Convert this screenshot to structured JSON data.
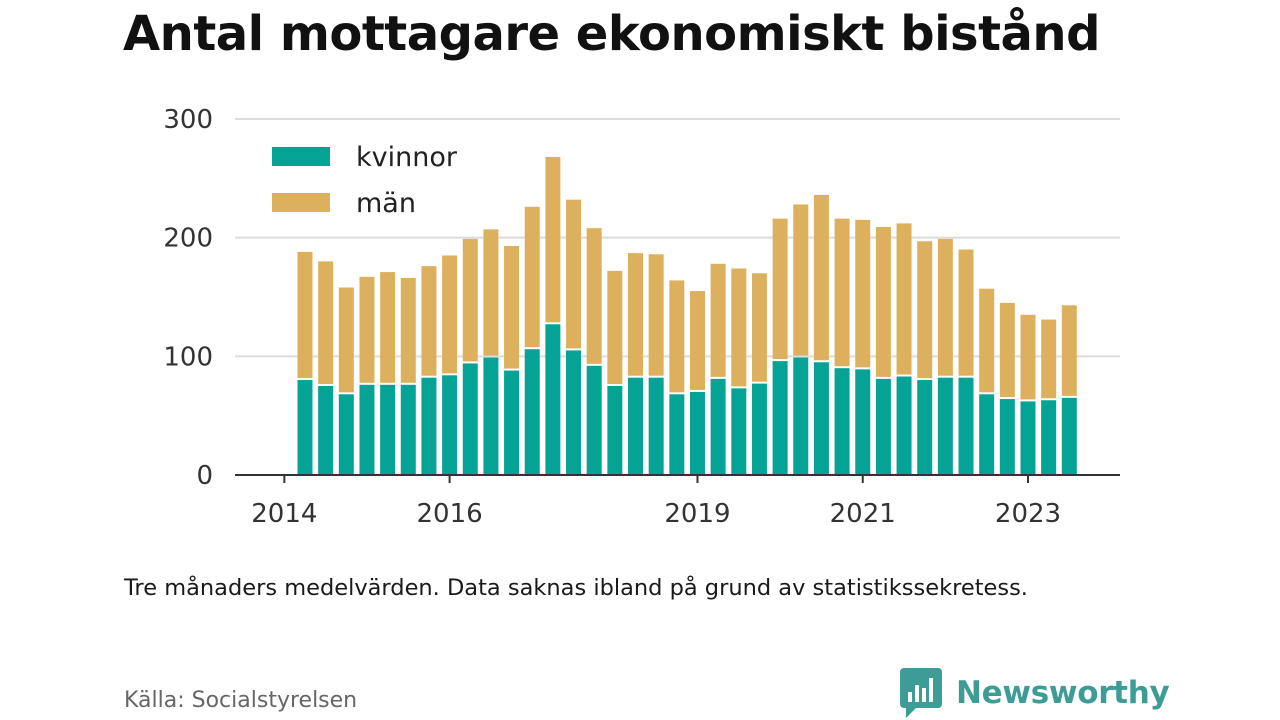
{
  "header": {
    "title": "Antal mottagare ekonomiskt bistånd"
  },
  "footer": {
    "caption": "Tre månaders medelvärden. Data saknas ibland på grund av statistikssekretess.",
    "source": "Källa: Socialstyrelsen",
    "brand": "Newsworthy"
  },
  "colors": {
    "kvinnor": "#04a396",
    "man": "#ddb05e",
    "brand": "#3d9c95"
  },
  "chart_data": {
    "type": "bar",
    "stacked": true,
    "title": "Antal mottagare ekonomiskt bistånd",
    "xlabel": "",
    "ylabel": "",
    "ylim": [
      0,
      300
    ],
    "yticks": [
      "0",
      "100",
      "200",
      "300"
    ],
    "xticks": [
      {
        "label": "2014",
        "quarter": "2014-Q1"
      },
      {
        "label": "2016",
        "quarter": "2016-Q1"
      },
      {
        "label": "2019",
        "quarter": "2019-Q1"
      },
      {
        "label": "2021",
        "quarter": "2021-Q1"
      },
      {
        "label": "2023",
        "quarter": "2023-Q1"
      }
    ],
    "grid": true,
    "legend_position": "top-left",
    "categories": [
      "2014-Q2",
      "2014-Q3",
      "2014-Q4",
      "2015-Q1",
      "2015-Q2",
      "2015-Q3",
      "2015-Q4",
      "2016-Q1",
      "2016-Q2",
      "2016-Q3",
      "2016-Q4",
      "2017-Q1",
      "2017-Q2",
      "2017-Q3",
      "2017-Q4",
      "2018-Q1",
      "2018-Q2",
      "2018-Q3",
      "2018-Q4",
      "2019-Q1",
      "2019-Q2",
      "2019-Q3",
      "2019-Q4",
      "2020-Q1",
      "2020-Q2",
      "2020-Q3",
      "2020-Q4",
      "2021-Q1",
      "2021-Q2",
      "2021-Q3",
      "2021-Q4",
      "2022-Q1",
      "2022-Q2",
      "2022-Q3",
      "2022-Q4",
      "2023-Q1",
      "2023-Q2",
      "2023-Q3"
    ],
    "series": [
      {
        "name": "kvinnor",
        "values": [
          80,
          75,
          68,
          76,
          76,
          76,
          82,
          84,
          94,
          99,
          88,
          106,
          127,
          105,
          92,
          75,
          82,
          82,
          68,
          70,
          81,
          73,
          77,
          96,
          99,
          95,
          90,
          89,
          81,
          83,
          80,
          82,
          82,
          68,
          64,
          62,
          63,
          65
        ]
      },
      {
        "name": "män",
        "values": [
          108,
          105,
          90,
          91,
          95,
          90,
          94,
          101,
          105,
          108,
          105,
          120,
          141,
          127,
          116,
          97,
          105,
          104,
          96,
          85,
          97,
          101,
          93,
          120,
          129,
          141,
          126,
          126,
          128,
          129,
          117,
          117,
          108,
          89,
          81,
          73,
          68,
          78
        ]
      }
    ]
  }
}
